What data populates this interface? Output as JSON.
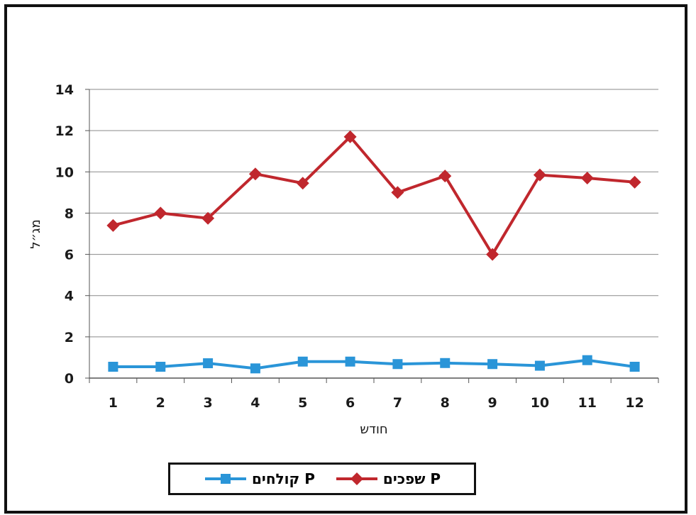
{
  "chart_data": {
    "type": "line",
    "xlabel": "חודש",
    "ylabel": "מג״ל",
    "ylim": [
      0,
      14
    ],
    "yticks": [
      0,
      2,
      4,
      6,
      8,
      10,
      12,
      14
    ],
    "categories": [
      "1",
      "2",
      "3",
      "4",
      "5",
      "6",
      "7",
      "8",
      "9",
      "10",
      "11",
      "12"
    ],
    "grid": true,
    "legend_position": "bottom",
    "series": [
      {
        "name": "P שפכים",
        "color": "#c0272d",
        "marker": "diamond",
        "values": [
          7.4,
          8.0,
          7.75,
          9.9,
          9.45,
          11.7,
          9.0,
          9.8,
          6.0,
          9.85,
          9.7,
          9.5
        ]
      },
      {
        "name": "P קולחים",
        "color": "#2a95d8",
        "marker": "square",
        "values": [
          0.55,
          0.55,
          0.72,
          0.47,
          0.8,
          0.8,
          0.68,
          0.73,
          0.68,
          0.6,
          0.87,
          0.55
        ]
      }
    ]
  }
}
